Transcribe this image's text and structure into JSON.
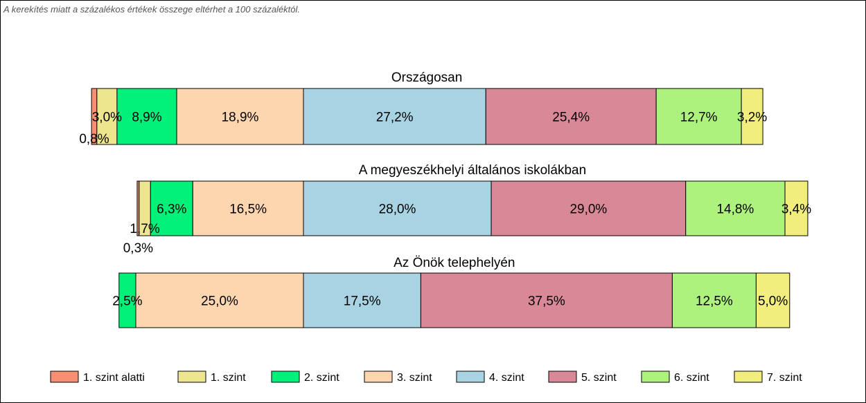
{
  "note": "A kerekítés miatt a  százalékos értékek összege eltérhet a 100 százaléktól.",
  "chart_data": {
    "type": "bar",
    "orientation": "horizontal",
    "stacked": true,
    "percent": true,
    "legend": [
      {
        "name": "1. szint alatti",
        "color": "#FA8E73"
      },
      {
        "name": "1. szint",
        "color": "#EEE58F"
      },
      {
        "name": "2. szint",
        "color": "#00F07A"
      },
      {
        "name": "3. szint",
        "color": "#FDD5AF"
      },
      {
        "name": "4. szint",
        "color": "#A7D3E3"
      },
      {
        "name": "5. szint",
        "color": "#D98897"
      },
      {
        "name": "6. szint",
        "color": "#AEF27E"
      },
      {
        "name": "7. szint",
        "color": "#F1EE7D"
      }
    ],
    "legend_position": "bottom",
    "bars": [
      {
        "title": "Országosan",
        "values": [
          0.8,
          3.0,
          8.9,
          18.9,
          27.2,
          25.4,
          12.7,
          3.2
        ],
        "labels": [
          "0,8%",
          "3,0%",
          "8,9%",
          "18,9%",
          "27,2%",
          "25,4%",
          "12,7%",
          "3,2%"
        ]
      },
      {
        "title": "A megyeszékhelyi általános iskolákban",
        "values": [
          0.3,
          1.7,
          6.3,
          16.5,
          28.0,
          29.0,
          14.8,
          3.4
        ],
        "labels": [
          "0,3%",
          "1,7%",
          "6,3%",
          "16,5%",
          "28,0%",
          "29,0%",
          "14,8%",
          "3,4%"
        ]
      },
      {
        "title": "Az Önök telephelyén",
        "values": [
          0,
          0,
          2.5,
          25.0,
          17.5,
          37.5,
          12.5,
          5.0
        ],
        "labels": [
          "",
          "",
          "2,5%",
          "25,0%",
          "17,5%",
          "37,5%",
          "12,5%",
          "5,0%"
        ]
      }
    ]
  }
}
